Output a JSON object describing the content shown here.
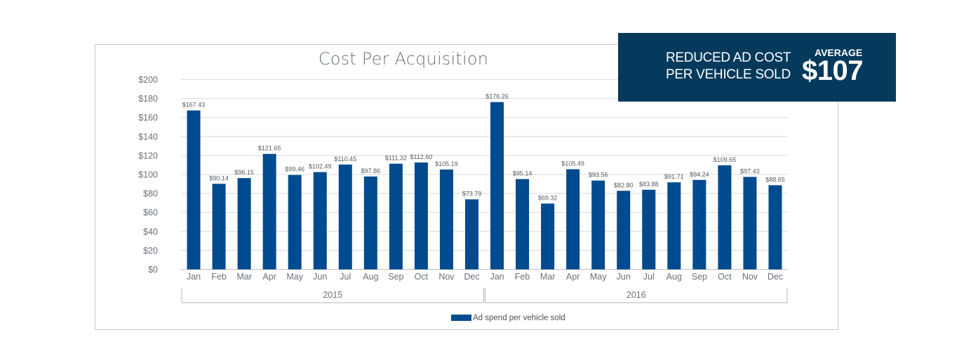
{
  "chart_data": {
    "type": "bar",
    "title": "Cost Per Acquisition",
    "ylim": [
      0,
      200
    ],
    "y_ticks": [
      "$0",
      "$20",
      "$40",
      "$60",
      "$80",
      "$100",
      "$120",
      "$140",
      "$160",
      "$180",
      "$200"
    ],
    "categories": [
      "Jan",
      "Feb",
      "Mar",
      "Apr",
      "May",
      "Jun",
      "Jul",
      "Aug",
      "Sep",
      "Oct",
      "Nov",
      "Dec",
      "Jan",
      "Feb",
      "Mar",
      "Apr",
      "May",
      "Jun",
      "Jul",
      "Aug",
      "Sep",
      "Oct",
      "Nov",
      "Dec"
    ],
    "groups": [
      {
        "label": "2015",
        "start": 0,
        "end": 11
      },
      {
        "label": "2016",
        "start": 12,
        "end": 23
      }
    ],
    "series": [
      {
        "name": "Ad spend per vehicle sold",
        "values": [
          167.43,
          90.14,
          96.15,
          121.65,
          99.46,
          102.49,
          110.45,
          97.86,
          111.32,
          112.6,
          105.19,
          73.79,
          176.26,
          95.14,
          69.32,
          105.49,
          93.56,
          82.8,
          83.88,
          91.71,
          94.24,
          109.65,
          97.43,
          88.65
        ],
        "labels": [
          "$167.43",
          "$90.14",
          "$96.15",
          "$121.65",
          "$99.46",
          "$102.49",
          "$110.45",
          "$97.86",
          "$111.32",
          "$112.60",
          "$105.19",
          "$73.79",
          "$176.26",
          "$95.14",
          "$69.32",
          "$105.49",
          "$93.56",
          "$82.80",
          "$83.88",
          "$91.71",
          "$94.24",
          "$109.65",
          "$97.43",
          "$88.65"
        ],
        "color": "#004a8f"
      }
    ],
    "grid": true,
    "legend_position": "bottom"
  },
  "callout": {
    "line1": "REDUCED AD COST",
    "line2": "PER VEHICLE SOLD",
    "average_label": "AVERAGE",
    "average_value": "$107",
    "background": "#063a5c"
  },
  "colors": {
    "bar": "#004a8f",
    "grid": "#d9d9d9",
    "tick_text": "#6a7178"
  }
}
